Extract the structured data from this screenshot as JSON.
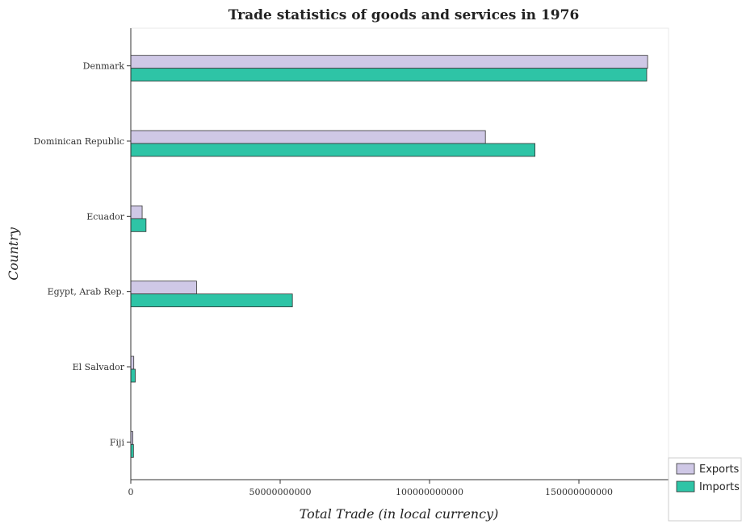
{
  "chart_data": {
    "type": "bar",
    "orientation": "horizontal",
    "title": "Trade statistics of goods and services in 1976",
    "xlabel": "Total Trade (in local currency)",
    "ylabel": "Country",
    "categories": [
      "Denmark",
      "Dominican Republic",
      "Ecuador",
      "Egypt, Arab Rep.",
      "El Salvador",
      "Fiji"
    ],
    "series": [
      {
        "name": "Exports",
        "color": "#cfc8e6",
        "values": [
          173000000000,
          118700000000,
          3800000000,
          22000000000,
          1000000000,
          700000000
        ]
      },
      {
        "name": "Imports",
        "color": "#2ec4a6",
        "values": [
          172700000000,
          135300000000,
          5100000000,
          54100000000,
          1500000000,
          900000000
        ]
      }
    ],
    "xlim": [
      0,
      180000000000
    ],
    "xticks": [
      0,
      50000000000,
      100000000000,
      150000000000
    ],
    "xtick_labels": [
      "0",
      "50000000000",
      "100000000000",
      "150000000000"
    ],
    "grid": false,
    "legend_position": "bottom-right"
  }
}
